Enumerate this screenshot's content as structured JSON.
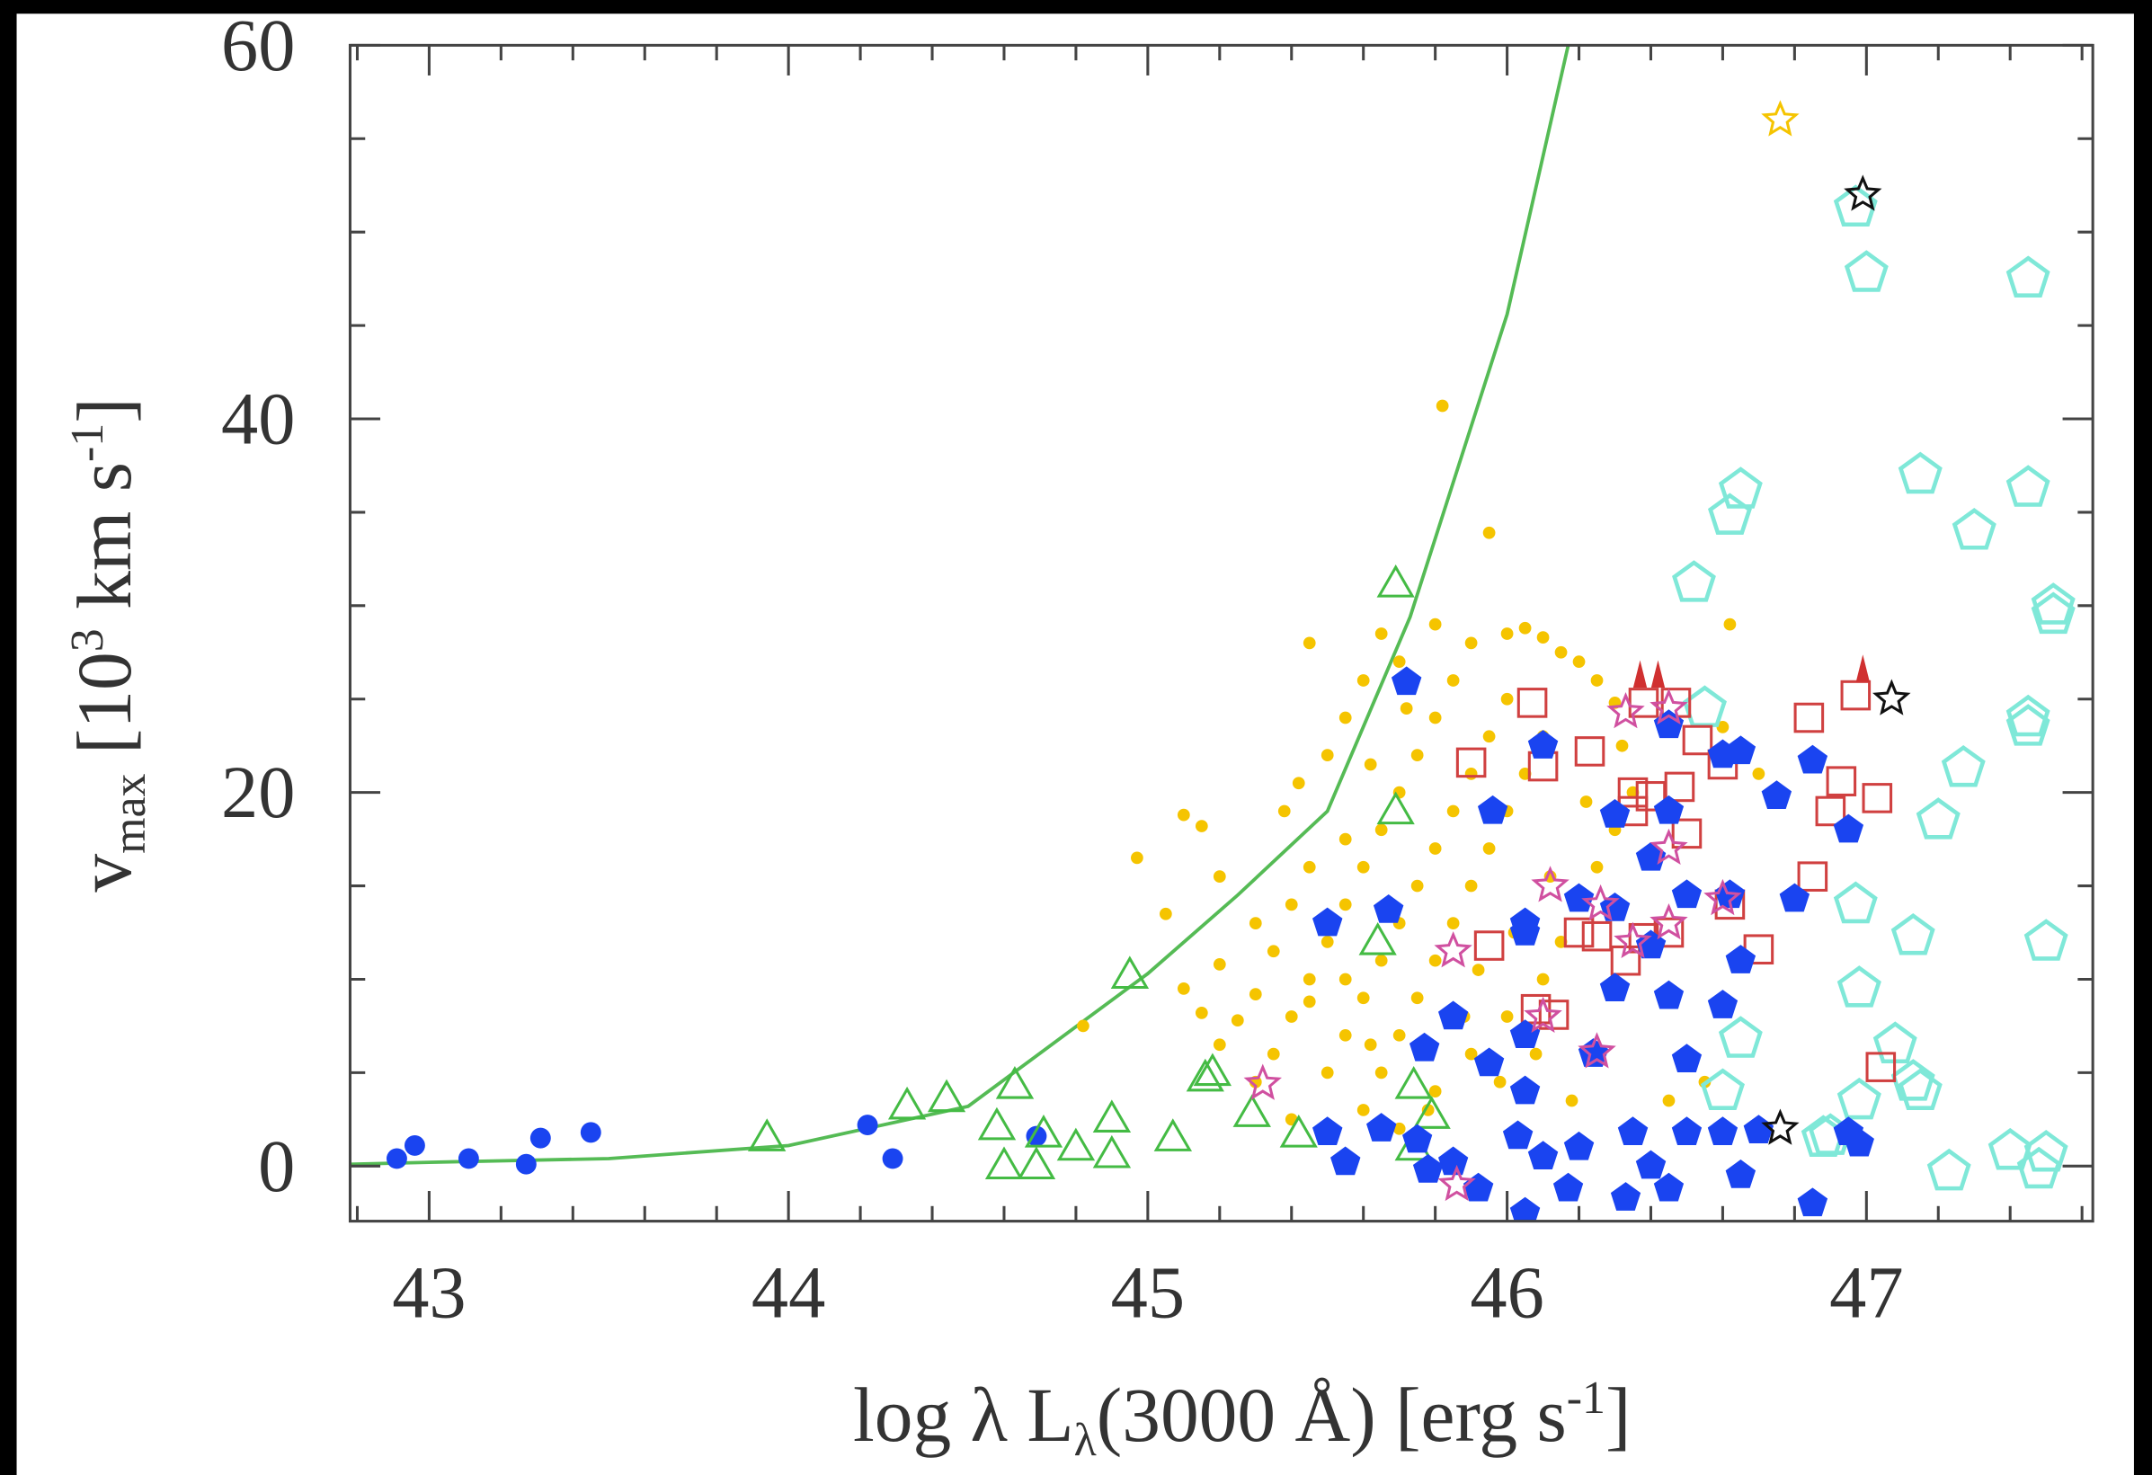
{
  "chart_data": {
    "type": "scatter",
    "xlabel": {
      "parts": [
        "log λ L",
        "λ",
        "(3000 Å) [erg s",
        "-1",
        "]"
      ]
    },
    "ylabel": {
      "parts": [
        "v",
        "max",
        " [10",
        "3",
        " km s",
        "-1",
        "]"
      ]
    },
    "xlim": [
      42.78,
      47.63
    ],
    "ylim": [
      -2.95,
      60
    ],
    "xticks": [
      43,
      44,
      45,
      46,
      47
    ],
    "yticks": [
      0,
      20,
      40,
      60
    ],
    "xminorticks": [
      42.8,
      43.2,
      43.4,
      43.6,
      43.8,
      44.2,
      44.4,
      44.6,
      44.8,
      45.2,
      45.4,
      45.6,
      45.8,
      46.2,
      46.4,
      46.6,
      46.8,
      47.2,
      47.4,
      47.6
    ],
    "yminorticks": [
      5,
      10,
      15,
      25,
      30,
      35,
      45,
      50,
      55
    ],
    "series": [
      {
        "marker": "line",
        "color": "#55bb55",
        "x": [
          42.78,
          43,
          43.5,
          44,
          44.5,
          45,
          45.25,
          45.5,
          45.73,
          46,
          46.17
        ],
        "y": [
          0.1,
          0.2,
          0.4,
          1.1,
          3.2,
          10.3,
          14.5,
          19,
          29.4,
          45.6,
          60
        ]
      },
      {
        "marker": "dot",
        "color": "#f5c400",
        "x": [
          45.82,
          45.95,
          46.62,
          44.82,
          44.97,
          45.05,
          45.1,
          45.15,
          45.2,
          45.1,
          45.15,
          45.2,
          45.25,
          45.3,
          45.35,
          45.4,
          45.45,
          45.38,
          45.5,
          45.55,
          45.45,
          45.6,
          45.65,
          45.7,
          45.8,
          45.9,
          46,
          46.05,
          46.1,
          46.15,
          46.2,
          46.25,
          46.3,
          45.3,
          45.35,
          45.4,
          45.45,
          45.5,
          45.55,
          45.6,
          45.65,
          45.7,
          45.75,
          45.8,
          45.85,
          45.5,
          45.55,
          45.6,
          45.65,
          45.7,
          45.75,
          45.8,
          45.85,
          45.9,
          45.95,
          46,
          45.6,
          45.65,
          45.7,
          45.75,
          45.8,
          45.85,
          45.9,
          45.95,
          46,
          46.05,
          46.1,
          45.7,
          45.8,
          45.9,
          46,
          46.1,
          46.15,
          46.2,
          46.25,
          46.3,
          46.35,
          45.4,
          45.45,
          45.55,
          45.62,
          45.72,
          45.92,
          46.02,
          46.12,
          46.22,
          46.32,
          46.45,
          46.55,
          46.6,
          46.7,
          45.2,
          45.3,
          45.42,
          45.55,
          45.62,
          45.78,
          45.88,
          45.98,
          46.08,
          46.18
        ],
        "y": [
          40.7,
          33.9,
          29,
          7.5,
          16.5,
          13.5,
          18.8,
          18.2,
          15.5,
          9.5,
          8.2,
          6.5,
          7.8,
          9.2,
          11.5,
          14,
          16,
          19,
          22,
          24,
          28,
          26,
          28.5,
          27,
          29,
          28,
          28.5,
          28.8,
          28.3,
          27.5,
          27,
          26,
          24.8,
          4.5,
          6,
          8,
          10,
          12,
          14,
          16,
          18,
          20,
          22,
          24,
          26,
          5,
          7,
          9,
          11,
          13,
          15,
          17,
          19,
          21,
          23,
          25,
          3,
          5,
          7,
          9,
          11,
          13,
          15,
          17,
          19,
          21,
          23,
          2,
          4,
          6,
          8,
          10,
          12,
          14,
          16,
          18,
          20,
          2.5,
          8.8,
          17.5,
          21.5,
          24.5,
          10.5,
          12.5,
          15.5,
          19.5,
          22.5,
          3.5,
          4.5,
          23.5,
          21,
          10.8,
          13,
          20.5,
          10,
          6.5,
          3,
          8,
          4.5,
          6,
          3.5
        ]
      },
      {
        "marker": "circle",
        "color": "#1a44f0",
        "x": [
          42.91,
          42.96,
          43.11,
          43.27,
          43.31,
          43.45,
          44.22,
          44.29,
          44.69
        ],
        "y": [
          0.4,
          1.1,
          0.4,
          0.1,
          1.5,
          1.8,
          2.2,
          0.4,
          1.6
        ]
      },
      {
        "marker": "triangle",
        "color": "#44bb44",
        "x": [
          45.69,
          45.69,
          45.64,
          44.95,
          44.33,
          44.44,
          44.63,
          44.58,
          44.71,
          44.8,
          44.9,
          44.9,
          44.6,
          44.69,
          43.94,
          45.07,
          45.16,
          45.29,
          45.42,
          45.74,
          45.79,
          45.74,
          45.18
        ],
        "y": [
          31.25,
          19.1,
          12.1,
          10.3,
          3.3,
          3.7,
          4.4,
          2.2,
          1.8,
          1.1,
          0.7,
          2.6,
          0.1,
          0.1,
          1.6,
          1.6,
          4.8,
          2.9,
          1.8,
          4.4,
          2.8,
          1.1,
          5.1
        ]
      },
      {
        "marker": "cyanpent",
        "color": "#7fe8d8",
        "x": [
          46.97,
          47,
          47.45,
          46.65,
          46.62,
          47.15,
          47.3,
          47.45,
          46.52,
          47.52,
          47.52,
          47.45,
          47.45,
          46.55,
          47.27,
          47.2,
          46.97,
          47.13,
          47.5,
          46.98,
          47.08,
          47.15,
          47.13,
          46.65,
          46.6,
          46.98,
          46.88,
          47.23,
          47.4,
          47.5,
          47.48,
          46.9
        ],
        "y": [
          51.3,
          47.8,
          47.5,
          36.2,
          34.8,
          37,
          34,
          36.3,
          31.2,
          30,
          29.5,
          24,
          23.5,
          24.5,
          21.3,
          18.5,
          14,
          12.3,
          12,
          9.5,
          6.5,
          4,
          4.5,
          6.8,
          4,
          3.5,
          1.5,
          -0.3,
          0.8,
          0.7,
          -0.2,
          1.6
        ]
      },
      {
        "marker": "square",
        "color": "#d04040",
        "x": [
          46.07,
          45.9,
          46.1,
          46.23,
          46.35,
          46.4,
          46.48,
          46.53,
          46.6,
          46.5,
          46.84,
          46.93,
          47.03,
          46.9,
          46.85,
          46.62,
          46.45,
          46.38,
          46.33,
          46.25,
          46.2,
          46.13,
          46.08,
          46.7,
          45.95,
          46.38,
          46.47,
          47.04,
          46.35,
          46.97
        ],
        "y": [
          24.8,
          21.6,
          21.4,
          22.2,
          20,
          19.8,
          20.3,
          22.8,
          21.5,
          17.8,
          24,
          20.6,
          19.7,
          19,
          15.5,
          14,
          12.5,
          12.2,
          11,
          12.3,
          12.5,
          8.1,
          8.4,
          11.6,
          11.8,
          24.8,
          24.8,
          5.3,
          19,
          25.2
        ]
      },
      {
        "marker": "pentagon",
        "color": "#1a44f0",
        "x": [
          45.72,
          46.1,
          45.96,
          45.5,
          45.67,
          46.05,
          46.05,
          46.2,
          46.3,
          46.4,
          46.45,
          46.45,
          46.6,
          46.65,
          46.75,
          46.85,
          46.95,
          46.8,
          46.62,
          46.5,
          46.3,
          46.4,
          46.65,
          46.6,
          46.45,
          46.3,
          46.05,
          45.85,
          45.77,
          45.95,
          46.05,
          46.24,
          46.5,
          45.5,
          45.55,
          45.65,
          45.75,
          45.85,
          45.92,
          46.03,
          46.1,
          46.05,
          46.2,
          46.17,
          46.35,
          46.4,
          46.45,
          46.5,
          46.6,
          46.7,
          46.65,
          46.85,
          46.95,
          46.98,
          46.33,
          45.78
        ],
        "y": [
          25.9,
          22.5,
          19,
          13,
          13.7,
          13,
          12.5,
          14.3,
          18.8,
          16.5,
          19,
          23.6,
          22,
          22.2,
          19.8,
          21.7,
          18,
          14.3,
          14.5,
          14.5,
          13.8,
          11.8,
          11,
          8.6,
          9.1,
          9.5,
          7,
          8,
          6.3,
          5.5,
          4,
          6,
          5.7,
          1.8,
          0.2,
          2,
          1.4,
          0.2,
          -1.2,
          1.6,
          0.5,
          -2.5,
          1,
          -1.2,
          1.8,
          0,
          -1.2,
          1.8,
          1.8,
          1.9,
          -0.5,
          -2,
          1.8,
          1.2,
          -1.7,
          -0.2
        ]
      },
      {
        "marker": "arrow",
        "color": "#d03030",
        "x": [
          46.37,
          46.42,
          46.99
        ],
        "y": [
          26.2,
          26.2,
          26.5
        ]
      },
      {
        "marker": "star",
        "color": "#d050a0",
        "x": [
          45.32,
          45.85,
          45.86,
          46.12,
          46.26,
          46.33,
          46.45,
          46.25,
          46.1,
          46.35,
          46.45,
          46.45,
          46.6
        ],
        "y": [
          4.4,
          11.5,
          -1,
          15,
          14,
          24.3,
          17,
          6.1,
          8,
          12,
          13,
          24.5,
          14.3
        ]
      },
      {
        "marker": "star",
        "color": "#f5c400",
        "x": [
          46.76
        ],
        "y": [
          56
        ]
      },
      {
        "marker": "star",
        "color": "#111111",
        "x": [
          46.99,
          47.07,
          46.76
        ],
        "y": [
          52,
          25,
          2
        ]
      }
    ]
  }
}
